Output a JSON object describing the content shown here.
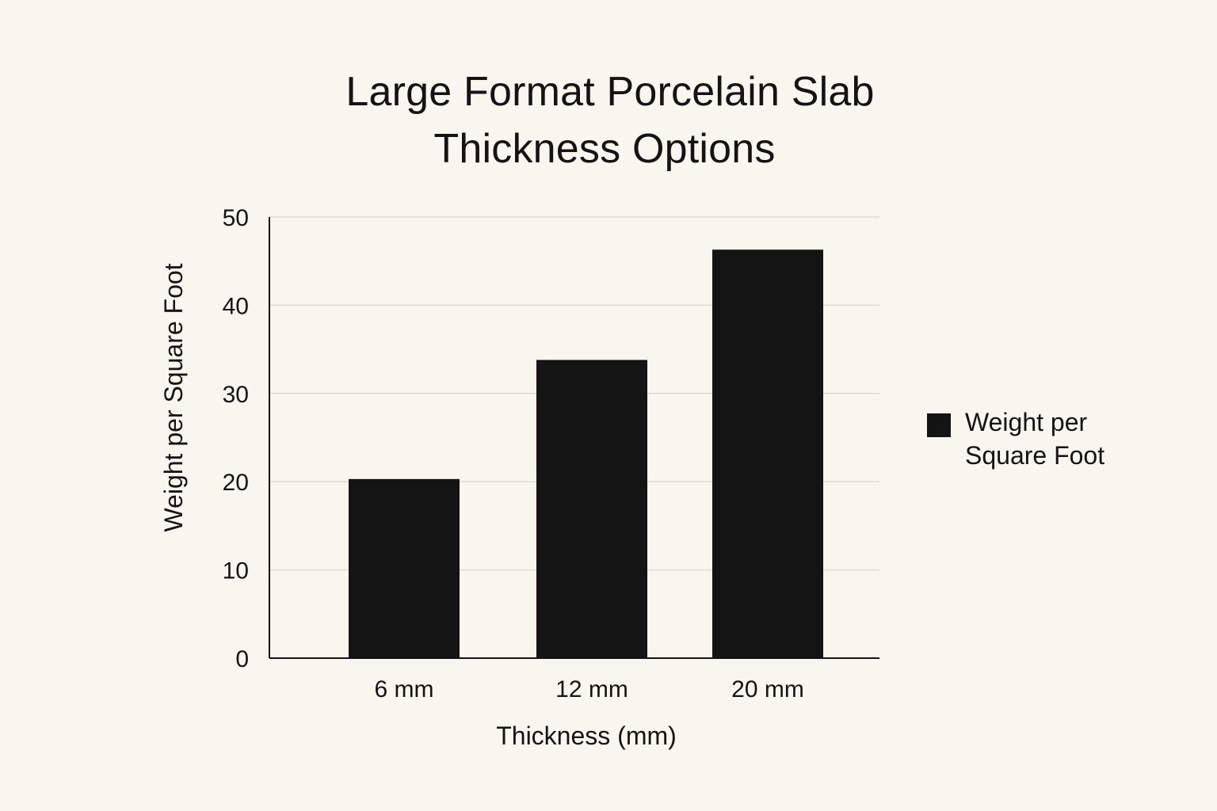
{
  "chart_data": {
    "type": "bar",
    "title": "Large Format Porcelain Slab Thickness Options",
    "title_lines": [
      "Large Format Porcelain Slab",
      "Thickness Options"
    ],
    "categories": [
      "6 mm",
      "12 mm",
      "20 mm"
    ],
    "series": [
      {
        "name": "Weight per Square Foot",
        "values": [
          20.3,
          33.8,
          46.3
        ],
        "color": "#141414"
      }
    ],
    "xlabel": "Thickness (mm)",
    "ylabel": "Weight per Square Foot",
    "ylim": [
      0,
      50
    ],
    "yticks": [
      0,
      10,
      20,
      30,
      40,
      50
    ],
    "grid": true,
    "legend_position": "right"
  },
  "colors": {
    "background": "#f9f5ef",
    "bar": "#141414",
    "grid": "#dedbd6",
    "axis": "#141414"
  }
}
